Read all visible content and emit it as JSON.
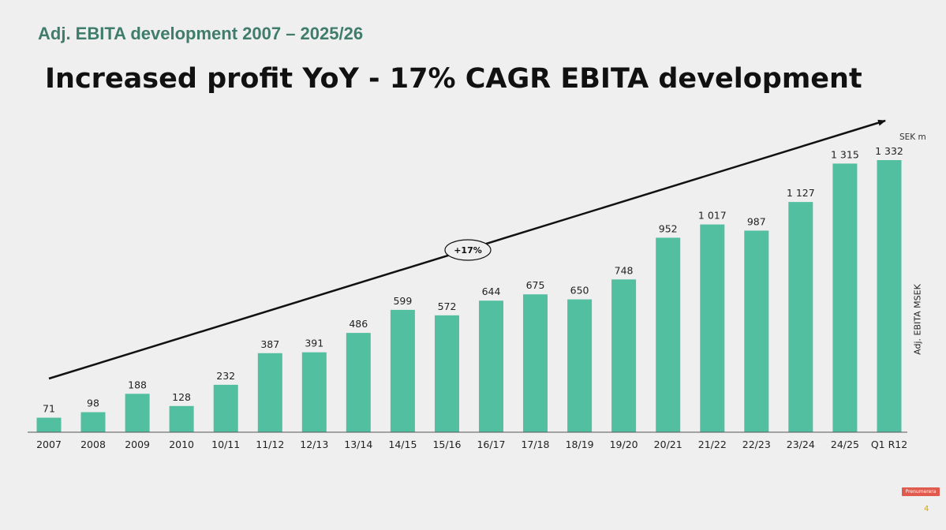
{
  "slide": {
    "subtitle": "Adj. EBITA development 2007 – 2025/26",
    "headline": "Increased profit YoY -  17% CAGR EBITA development",
    "unit": "SEK m",
    "page_number": "4",
    "subscribe_label": "Prenumerera"
  },
  "colors": {
    "bar": "#53bfa1",
    "subtitle": "#3f7c6c",
    "arrow": "#111111"
  },
  "chart_data": {
    "type": "bar",
    "title": "Adj. EBITA development 2007 – 2025/26",
    "xlabel": "",
    "ylabel": "Adj. EBITA MSEK",
    "ylim": [
      0,
      1400
    ],
    "grid": false,
    "categories": [
      "2007",
      "2008",
      "2009",
      "2010",
      "10/11",
      "11/12",
      "12/13",
      "13/14",
      "14/15",
      "15/16",
      "16/17",
      "17/18",
      "18/19",
      "19/20",
      "20/21",
      "21/22",
      "22/23",
      "23/24",
      "24/25",
      "Q1 R12"
    ],
    "values": [
      71,
      98,
      188,
      128,
      232,
      387,
      391,
      486,
      599,
      572,
      644,
      675,
      650,
      748,
      952,
      1017,
      987,
      1127,
      1315,
      1332
    ],
    "value_labels": [
      "71",
      "98",
      "188",
      "128",
      "232",
      "387",
      "391",
      "486",
      "599",
      "572",
      "644",
      "675",
      "650",
      "748",
      "952",
      "1 017",
      "987",
      "1 127",
      "1 315",
      "1 332"
    ],
    "annotation": "+17%"
  }
}
